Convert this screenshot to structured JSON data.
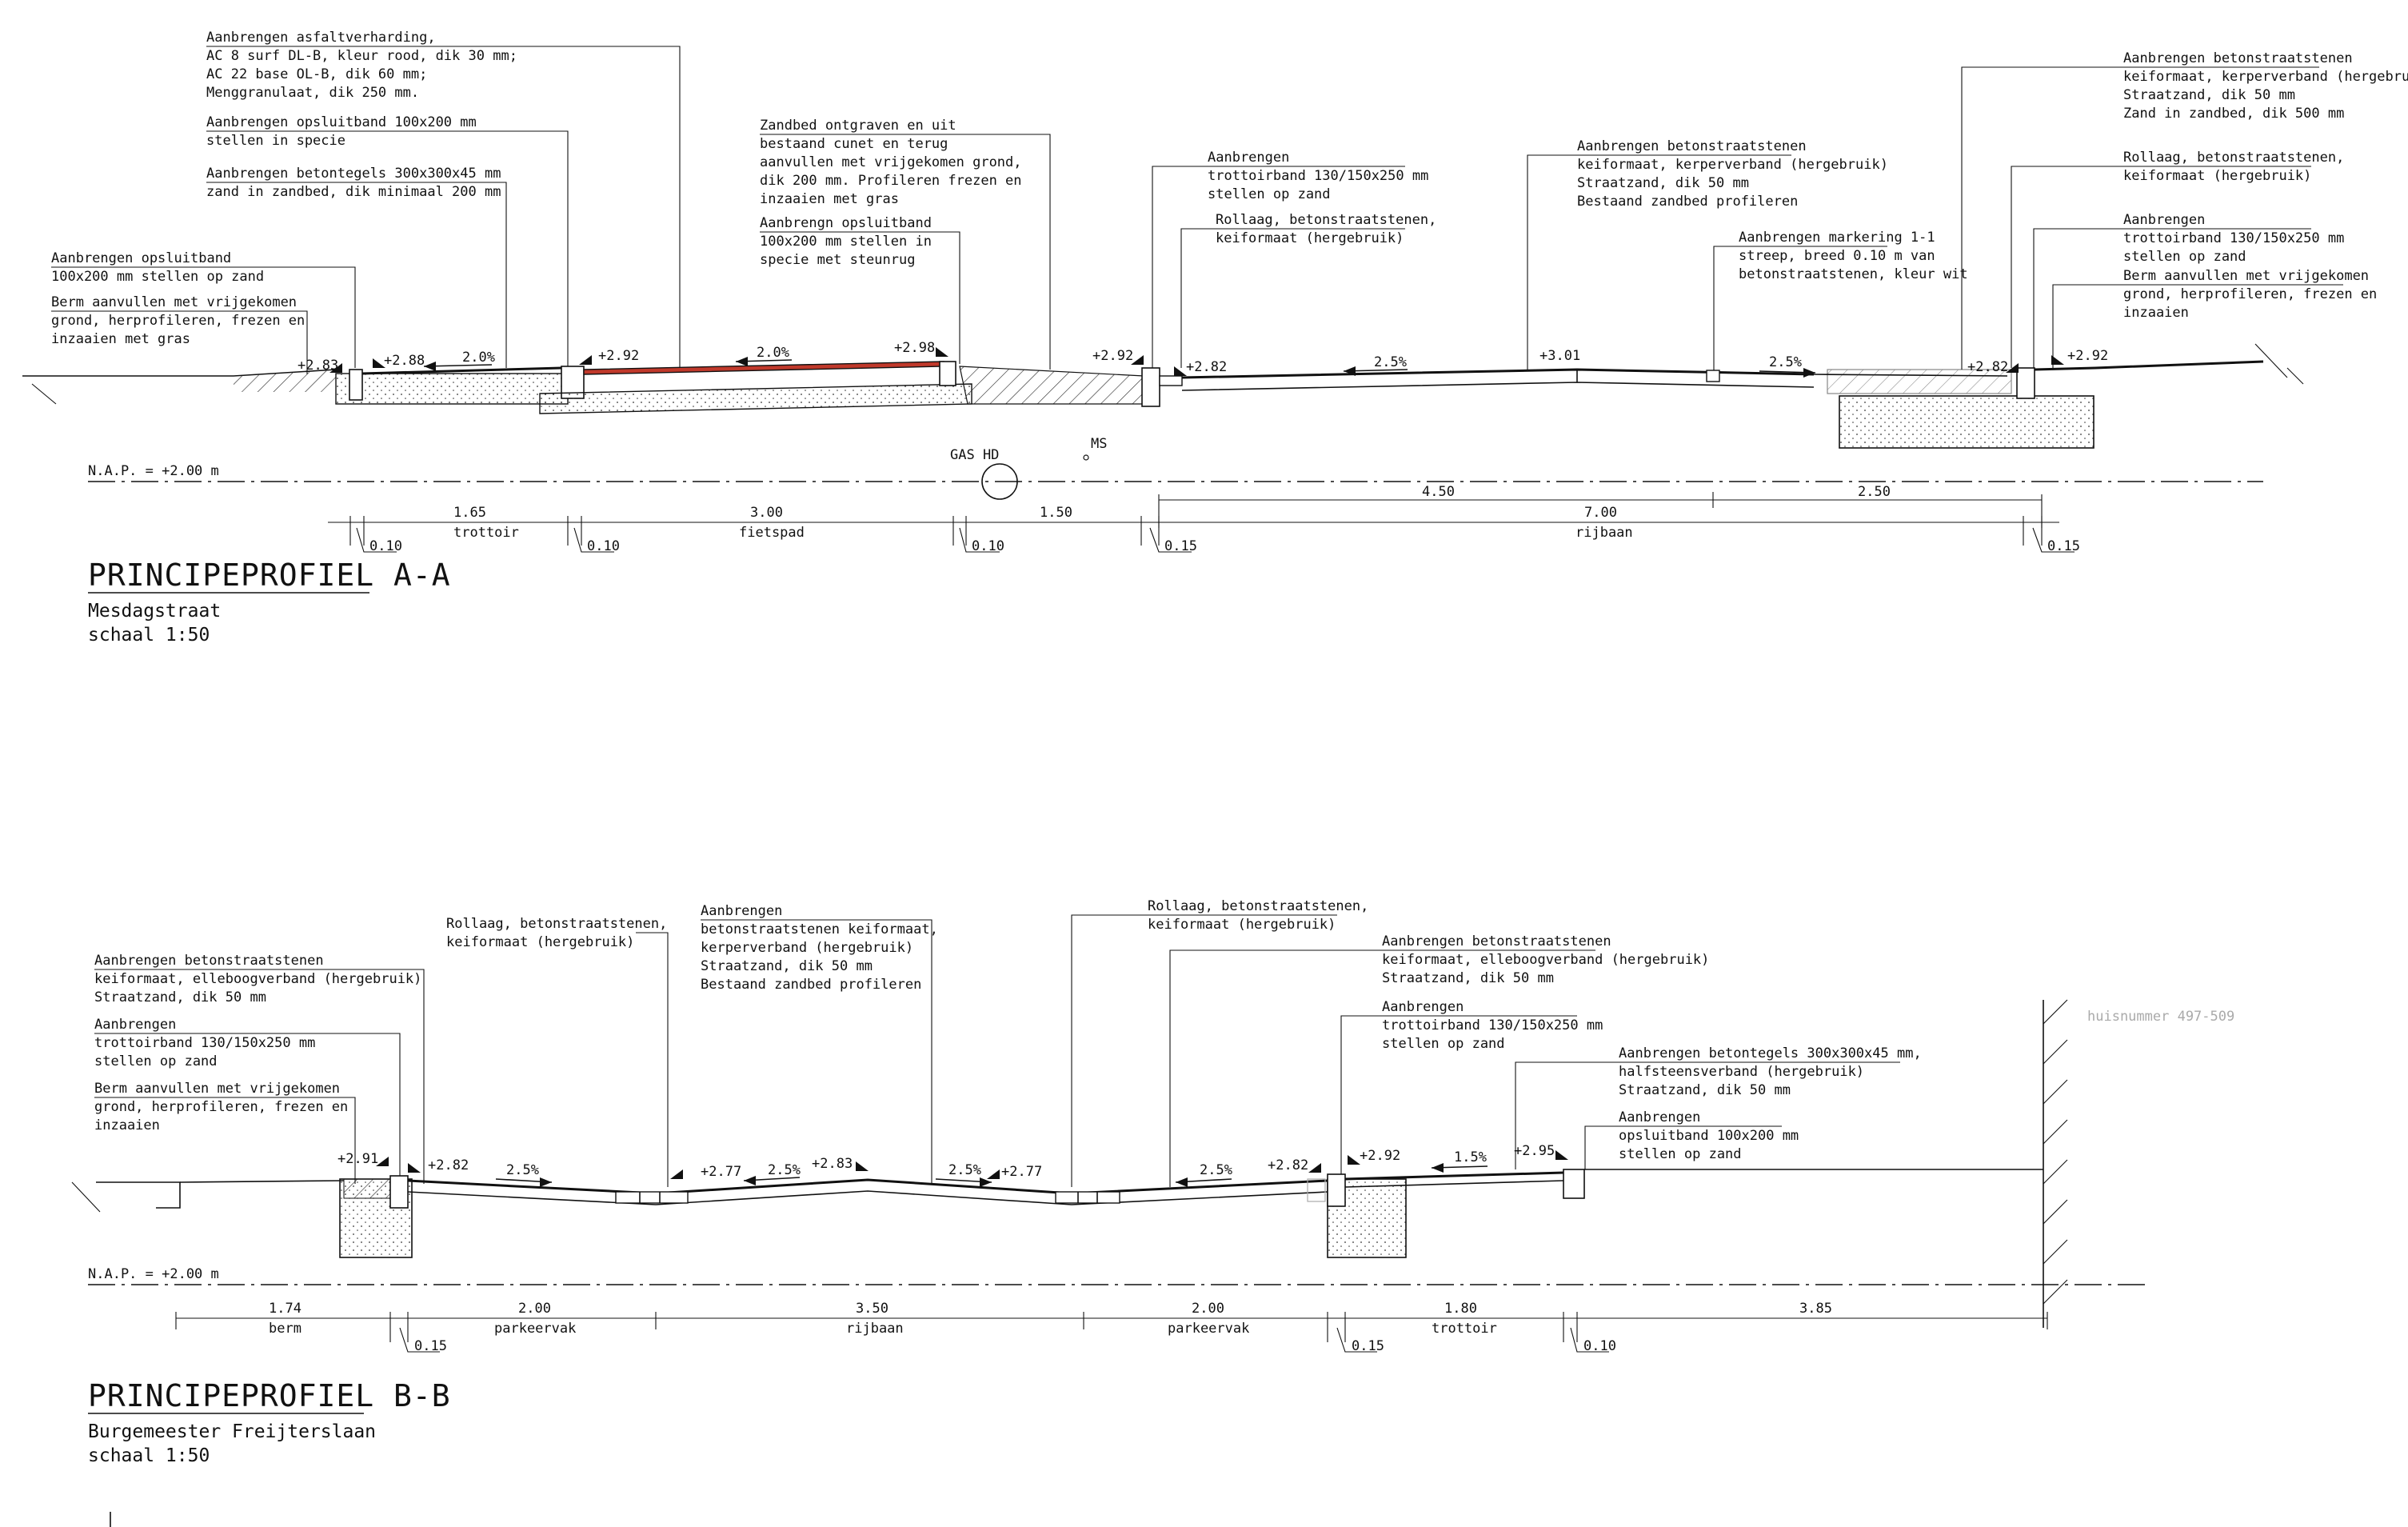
{
  "profile_a": {
    "title": "PRINCIPEPROFIEL A-A",
    "street": "Mesdagstraat",
    "scale": "schaal 1:50",
    "nap": "N.A.P. = +2.00 m",
    "gas_label": "GAS HD",
    "ms_label": "MS",
    "annotations": {
      "asfalt": [
        "Aanbrengen asfaltverharding,",
        "AC 8 surf DL-B, kleur rood, dik 30 mm;",
        "AC 22 base OL-B, dik 60 mm;",
        "Menggranulaat, dik 250 mm."
      ],
      "opsluit1": [
        "Aanbrengen opsluitband 100x200 mm",
        "stellen in specie"
      ],
      "tegels": [
        "Aanbrengen betontegels 300x300x45 mm",
        "zand in zandbed, dik minimaal 200 mm"
      ],
      "opsluit2": [
        "Aanbrengen opsluitband",
        "100x200 mm stellen op zand"
      ],
      "berm": [
        "Berm aanvullen met vrijgekomen",
        "grond, herprofileren, frezen en",
        "inzaaien met gras"
      ],
      "zandbed": [
        "Zandbed ontgraven en uit",
        "bestaand cunet en terug",
        "aanvullen met vrijgekomen grond,",
        "dik 200 mm. Profileren frezen en",
        "inzaaien met gras"
      ],
      "opsluit3": [
        "Aanbrengn opsluitband",
        "100x200 mm stellen in",
        "specie met steunrug"
      ],
      "trottoir1": [
        "Aanbrengen",
        "trottoirband 130/150x250 mm",
        "stellen op zand"
      ],
      "rollaag1": [
        "Rollaag, betonstraatstenen,",
        "keiformaat (hergebruik)"
      ],
      "betonstraat1": [
        "Aanbrengen betonstraatstenen",
        "keiformaat, kerperverband (hergebruik)",
        "Straatzand, dik 50 mm",
        "Bestaand zandbed profileren"
      ],
      "markering": [
        "Aanbrengen markering 1-1",
        "streep, breed 0.10 m van",
        "betonstraatstenen, kleur wit"
      ],
      "betonstraat2": [
        "Aanbrengen betonstraatstenen",
        "keiformaat, kerperverband (hergebruik)",
        "Straatzand, dik 50 mm",
        "Zand in zandbed, dik 500 mm"
      ],
      "rollaag2": [
        "Rollaag, betonstraatstenen,",
        "keiformaat (hergebruik)"
      ],
      "trottoir2": [
        "Aanbrengen",
        "trottoirband 130/150x250 mm",
        "stellen op zand"
      ],
      "berm2": [
        "Berm aanvullen met vrijgekomen",
        "grond, herprofileren, frezen en",
        "inzaaien"
      ]
    },
    "levels": [
      "+2.83",
      "+2.88",
      "+2.92",
      "+2.98",
      "+2.92",
      "+2.82",
      "+3.01",
      "+2.82",
      "+2.92"
    ],
    "slopes": [
      "2.0%",
      "2.0%",
      "2.5%",
      "2.5%"
    ],
    "dims_top": [
      "4.50",
      "2.50"
    ],
    "dims_main": [
      "1.65",
      "3.00",
      "1.50",
      "7.00"
    ],
    "dims_names": [
      "trottoir",
      "fietspad",
      "rijbaan"
    ],
    "dims_small": [
      "0.10",
      "0.10",
      "0.10",
      "0.15",
      "0.15"
    ]
  },
  "profile_b": {
    "title": "PRINCIPEPROFIEL B-B",
    "street": "Burgemeester Freijterslaan",
    "scale": "schaal 1:50",
    "nap": "N.A.P. = +2.00 m",
    "house": "huisnummer 497-509",
    "annotations": {
      "betonstraat1": [
        "Aanbrengen betonstraatstenen",
        "keiformaat, elleboogverband (hergebruik)",
        "Straatzand, dik 50 mm"
      ],
      "trottoir1": [
        "Aanbrengen",
        "trottoirband 130/150x250 mm",
        "stellen op zand"
      ],
      "berm": [
        "Berm aanvullen met vrijgekomen",
        "grond, herprofileren, frezen en",
        "inzaaien"
      ],
      "rollaag1": [
        "Rollaag, betonstraatstenen,",
        "keiformaat (hergebruik)"
      ],
      "kerper": [
        "Aanbrengen",
        "betonstraatstenen keiformaat,",
        "kerperverband (hergebruik)",
        "Straatzand, dik 50 mm",
        "Bestaand zandbed profileren"
      ],
      "rollaag2": [
        "Rollaag, betonstraatstenen,",
        "keiformaat (hergebruik)"
      ],
      "betonstraat2": [
        "Aanbrengen betonstraatstenen",
        "keiformaat, elleboogverband (hergebruik)",
        "Straatzand, dik 50 mm"
      ],
      "trottoir2": [
        "Aanbrengen",
        "trottoirband 130/150x250 mm",
        "stellen op zand"
      ],
      "tegels": [
        "Aanbrengen betontegels 300x300x45 mm,",
        "halfsteensverband (hergebruik)",
        "Straatzand, dik 50 mm"
      ],
      "opsluit": [
        "Aanbrengen",
        "opsluitband 100x200 mm",
        "stellen op zand"
      ]
    },
    "levels": [
      "+2.91",
      "+2.82",
      "+2.77",
      "+2.83",
      "+2.77",
      "+2.82",
      "+2.92",
      "+2.95"
    ],
    "slopes": [
      "2.5%",
      "2.5%",
      "2.5%",
      "2.5%",
      "1.5%"
    ],
    "dims_main": [
      "1.74",
      "2.00",
      "3.50",
      "2.00",
      "1.80",
      "3.85"
    ],
    "dims_names": [
      "berm",
      "parkeervak",
      "rijbaan",
      "parkeervak",
      "trottoir"
    ],
    "dims_small": [
      "0.15",
      "0.15",
      "0.10"
    ]
  },
  "colors": {
    "line": "#111111",
    "asphalt_red": "#c0392b",
    "grey_text": "#aaaaaa"
  }
}
